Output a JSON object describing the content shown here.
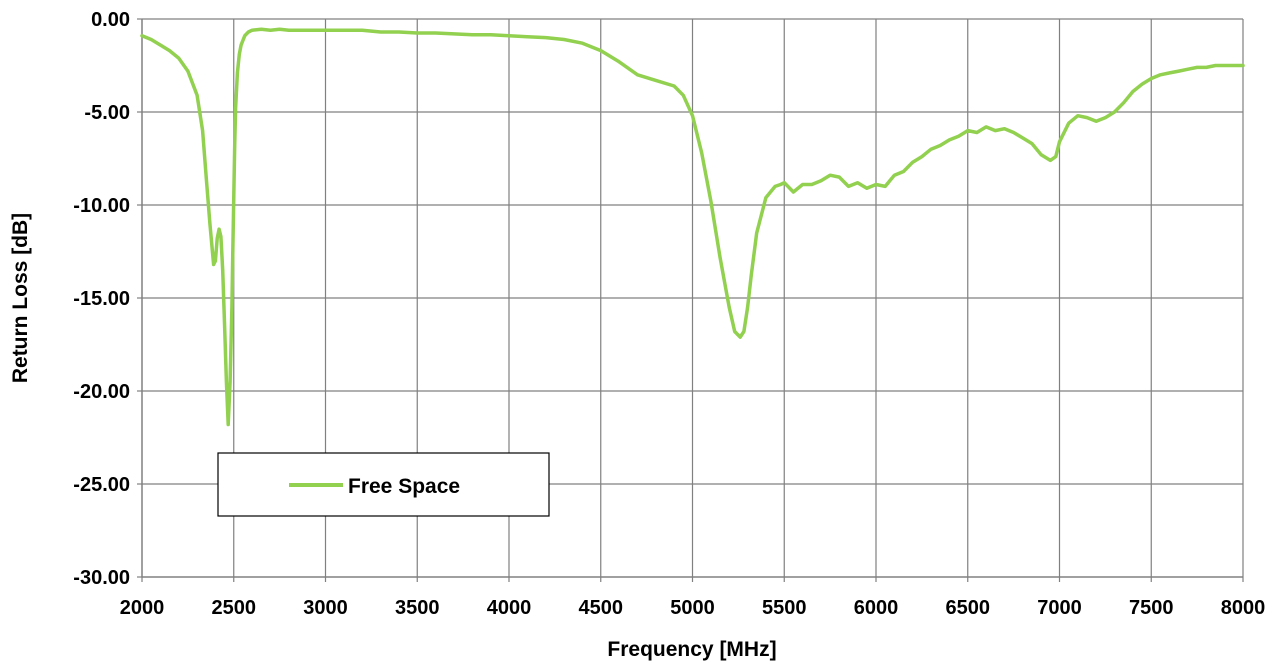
{
  "chart_data": {
    "type": "line",
    "title": "",
    "xlabel": "Frequency [MHz]",
    "ylabel": "Return Loss [dB]",
    "xlim": [
      2000,
      8000
    ],
    "ylim": [
      -30,
      0
    ],
    "x_ticks": [
      2000,
      2500,
      3000,
      3500,
      4000,
      4500,
      5000,
      5500,
      6000,
      6500,
      7000,
      7500,
      8000
    ],
    "x_tick_labels": [
      "2000",
      "2500",
      "3000",
      "3500",
      "4000",
      "4500",
      "5000",
      "5500",
      "6000",
      "6500",
      "7000",
      "7500",
      "8000"
    ],
    "y_ticks": [
      0,
      -5,
      -10,
      -15,
      -20,
      -25,
      -30
    ],
    "y_tick_labels": [
      "0.00",
      "-5.00",
      "-10.00",
      "-15.00",
      "-20.00",
      "-25.00",
      "-30.00"
    ],
    "grid": true,
    "legend": {
      "position": "bottom-left",
      "entries": [
        "Free Space"
      ]
    },
    "series": [
      {
        "name": "Free Space",
        "color": "#92D050",
        "x": [
          2000,
          2050,
          2100,
          2150,
          2200,
          2250,
          2300,
          2330,
          2350,
          2370,
          2390,
          2400,
          2410,
          2420,
          2430,
          2440,
          2450,
          2460,
          2470,
          2480,
          2490,
          2495,
          2500,
          2505,
          2510,
          2520,
          2530,
          2540,
          2560,
          2580,
          2600,
          2650,
          2700,
          2750,
          2800,
          2900,
          3000,
          3100,
          3200,
          3300,
          3400,
          3500,
          3600,
          3700,
          3800,
          3900,
          4000,
          4100,
          4200,
          4300,
          4400,
          4500,
          4600,
          4700,
          4800,
          4900,
          4950,
          5000,
          5050,
          5100,
          5150,
          5200,
          5230,
          5260,
          5280,
          5300,
          5320,
          5350,
          5400,
          5450,
          5480,
          5500,
          5550,
          5600,
          5650,
          5700,
          5750,
          5800,
          5850,
          5900,
          5950,
          6000,
          6050,
          6100,
          6150,
          6200,
          6250,
          6300,
          6350,
          6400,
          6450,
          6500,
          6550,
          6600,
          6650,
          6700,
          6750,
          6800,
          6850,
          6900,
          6950,
          6980,
          7000,
          7050,
          7100,
          7150,
          7200,
          7250,
          7300,
          7350,
          7400,
          7450,
          7500,
          7550,
          7600,
          7650,
          7700,
          7750,
          7800,
          7850,
          7900,
          7950,
          8000
        ],
        "values": [
          -0.9,
          -1.1,
          -1.4,
          -1.7,
          -2.1,
          -2.8,
          -4.1,
          -6.0,
          -8.5,
          -11.0,
          -13.2,
          -13.0,
          -11.8,
          -11.3,
          -11.7,
          -13.5,
          -16.5,
          -19.5,
          -21.8,
          -19.5,
          -15.5,
          -12.5,
          -9.5,
          -6.8,
          -4.8,
          -2.9,
          -1.9,
          -1.4,
          -0.9,
          -0.7,
          -0.6,
          -0.55,
          -0.6,
          -0.55,
          -0.6,
          -0.6,
          -0.6,
          -0.6,
          -0.6,
          -0.7,
          -0.7,
          -0.75,
          -0.75,
          -0.8,
          -0.85,
          -0.85,
          -0.9,
          -0.95,
          -1.0,
          -1.1,
          -1.3,
          -1.7,
          -2.3,
          -3.0,
          -3.3,
          -3.6,
          -4.1,
          -5.2,
          -7.2,
          -9.8,
          -12.8,
          -15.5,
          -16.8,
          -17.1,
          -16.8,
          -15.5,
          -13.8,
          -11.5,
          -9.6,
          -9.0,
          -8.9,
          -8.8,
          -9.3,
          -8.9,
          -8.9,
          -8.7,
          -8.4,
          -8.5,
          -9.0,
          -8.8,
          -9.1,
          -8.9,
          -9.0,
          -8.4,
          -8.2,
          -7.7,
          -7.4,
          -7.0,
          -6.8,
          -6.5,
          -6.3,
          -6.0,
          -6.1,
          -5.8,
          -6.0,
          -5.9,
          -6.1,
          -6.4,
          -6.7,
          -7.3,
          -7.6,
          -7.4,
          -6.6,
          -5.6,
          -5.2,
          -5.3,
          -5.5,
          -5.3,
          -5.0,
          -4.5,
          -3.9,
          -3.5,
          -3.2,
          -3.0,
          -2.9,
          -2.8,
          -2.7,
          -2.6,
          -2.6,
          -2.5,
          -2.5,
          -2.5,
          -2.5
        ]
      }
    ]
  }
}
